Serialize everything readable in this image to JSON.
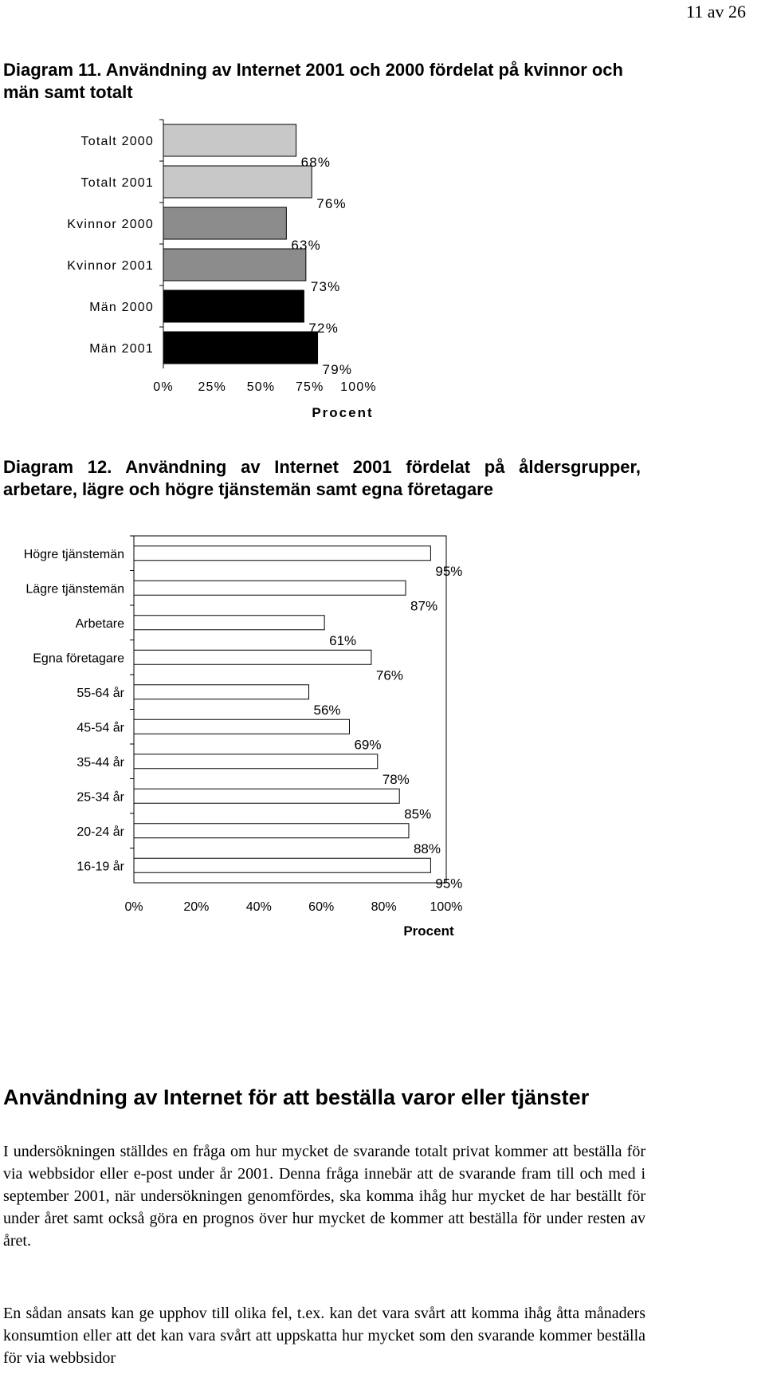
{
  "page_number": "11 av 26",
  "diagram11_title": "Diagram 11. Användning av Internet 2001 och 2000 fördelat på kvinnor och män samt totalt",
  "diagram12_title": "Diagram 12. Användning av Internet 2001 fördelat på åldersgrupper, arbetare, lägre och högre tjänstemän samt egna företagare",
  "section_title": "Användning av Internet för att beställa varor eller tjänster",
  "paragraph1": "I undersökningen ställdes en fråga om hur mycket de svarande totalt privat kommer att beställa för via webbsidor eller e-post under år 2001. Denna fråga innebär att de svarande fram till och med i september 2001, när undersökningen genomfördes, ska komma ihåg hur mycket de har beställt för under året samt också göra en prognos över hur mycket de kommer att beställa för under resten av året.",
  "paragraph2": "En sådan ansats kan ge upphov till olika fel, t.ex. kan det vara svårt att komma ihåg åtta månaders konsumtion eller att det kan vara svårt att uppskatta hur mycket som den svarande kommer beställa för via webbsidor",
  "chart_data": [
    {
      "type": "bar",
      "orientation": "horizontal",
      "categories": [
        "Totalt 2000",
        "Totalt 2001",
        "Kvinnor 2000",
        "Kvinnor 2001",
        "Män 2000",
        "Män 2001"
      ],
      "values": [
        68,
        76,
        63,
        73,
        72,
        79
      ],
      "value_labels": [
        "68%",
        "76%",
        "63%",
        "73%",
        "72%",
        "79%"
      ],
      "bar_colors": [
        "#c8c8c8",
        "#c8c8c8",
        "#8c8c8c",
        "#8c8c8c",
        "#000000",
        "#000000"
      ],
      "xlabel": "Procent",
      "ylabel": "",
      "xlim": [
        0,
        100
      ],
      "ticks": [
        "0%",
        "25%",
        "50%",
        "75%",
        "100%"
      ],
      "grid": false
    },
    {
      "type": "bar",
      "orientation": "horizontal",
      "categories": [
        "Högre tjänstemän",
        "Lägre tjänstemän",
        "Arbetare",
        "Egna företagare",
        "55-64 år",
        "45-54 år",
        "35-44 år",
        "25-34 år",
        "20-24 år",
        "16-19 år"
      ],
      "values": [
        95,
        87,
        61,
        76,
        56,
        69,
        78,
        85,
        88,
        95
      ],
      "value_labels": [
        "95%",
        "87%",
        "61%",
        "76%",
        "56%",
        "69%",
        "78%",
        "85%",
        "88%",
        "95%"
      ],
      "bar_colors": [
        "#ffffff"
      ],
      "xlabel": "Procent",
      "ylabel": "",
      "xlim": [
        0,
        100
      ],
      "ticks": [
        "0%",
        "20%",
        "40%",
        "60%",
        "80%",
        "100%"
      ],
      "grid": false
    }
  ]
}
